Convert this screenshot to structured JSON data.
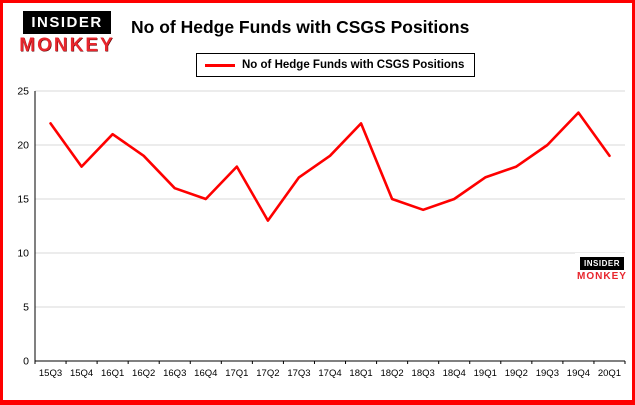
{
  "logo": {
    "line1": "INSIDER",
    "line2": "MONKEY"
  },
  "header": {
    "title": "No of Hedge Funds with CSGS Positions"
  },
  "legend": {
    "label": "No of Hedge Funds with CSGS Positions"
  },
  "watermark": {
    "line1": "INSIDER",
    "line2": "MONKEY"
  },
  "colors": {
    "line": "#fe0000",
    "border": "#fe0000",
    "grid": "#d9d9d9",
    "axis": "#000000",
    "text": "#000000"
  },
  "chart_data": {
    "type": "line",
    "title": "No of Hedge Funds with CSGS Positions",
    "series_name": "No of Hedge Funds with CSGS Positions",
    "categories": [
      "15Q3",
      "15Q4",
      "16Q1",
      "16Q2",
      "16Q3",
      "16Q4",
      "17Q1",
      "17Q2",
      "17Q3",
      "17Q4",
      "18Q1",
      "18Q2",
      "18Q3",
      "18Q4",
      "19Q1",
      "19Q2",
      "19Q3",
      "19Q4",
      "20Q1"
    ],
    "values": [
      22,
      18,
      21,
      19,
      16,
      15,
      18,
      13,
      17,
      19,
      22,
      15,
      14,
      15,
      17,
      18,
      20,
      23,
      19
    ],
    "xlabel": "",
    "ylabel": "",
    "ylim": [
      0,
      25
    ],
    "yticks": [
      0,
      5,
      10,
      15,
      20,
      25
    ],
    "grid": true,
    "legend_position": "top-left",
    "line_color": "#fe0000"
  }
}
